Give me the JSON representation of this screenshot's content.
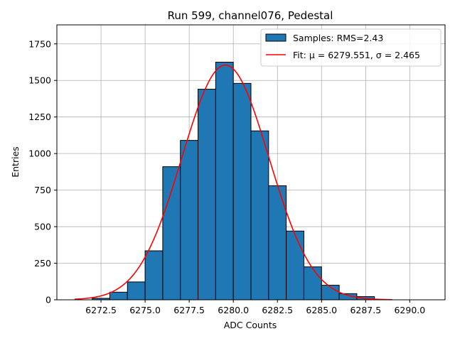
{
  "chart_data": {
    "type": "bar",
    "title": "Run 599, channel076, Pedestal",
    "xlabel": "ADC Counts",
    "ylabel": "Entries",
    "xlim": [
      6270.0,
      6292.0
    ],
    "ylim": [
      0,
      1880
    ],
    "xticks": [
      6272.5,
      6275.0,
      6277.5,
      6280.0,
      6282.5,
      6285.0,
      6287.5,
      6290.0
    ],
    "xtick_labels": [
      "6272.5",
      "6275.0",
      "6277.5",
      "6280.0",
      "6282.5",
      "6285.0",
      "6287.5",
      "6290.0"
    ],
    "yticks": [
      0,
      250,
      500,
      750,
      1000,
      1250,
      1500,
      1750
    ],
    "ytick_labels": [
      "0",
      "250",
      "500",
      "750",
      "1000",
      "1250",
      "1500",
      "1750"
    ],
    "grid": true,
    "legend_position": "top-right",
    "histogram": {
      "name": "Samples: RMS=2.43",
      "color": "#1f77b4",
      "edge_color": "#000000",
      "bin_edges": [
        6272,
        6273,
        6274,
        6275,
        6276,
        6277,
        6278,
        6279,
        6280,
        6281,
        6282,
        6283,
        6284,
        6285,
        6286,
        6287,
        6288
      ],
      "values": [
        10,
        52,
        122,
        335,
        910,
        1090,
        1440,
        1625,
        1480,
        1155,
        780,
        470,
        225,
        100,
        42,
        22
      ]
    },
    "fit": {
      "name": "Fit: μ = 6279.551, σ = 2.465",
      "color": "#ff0000",
      "mu": 6279.551,
      "sigma": 2.465,
      "amplitude": 1605,
      "x_range": [
        6271.0,
        6289.0
      ]
    }
  }
}
